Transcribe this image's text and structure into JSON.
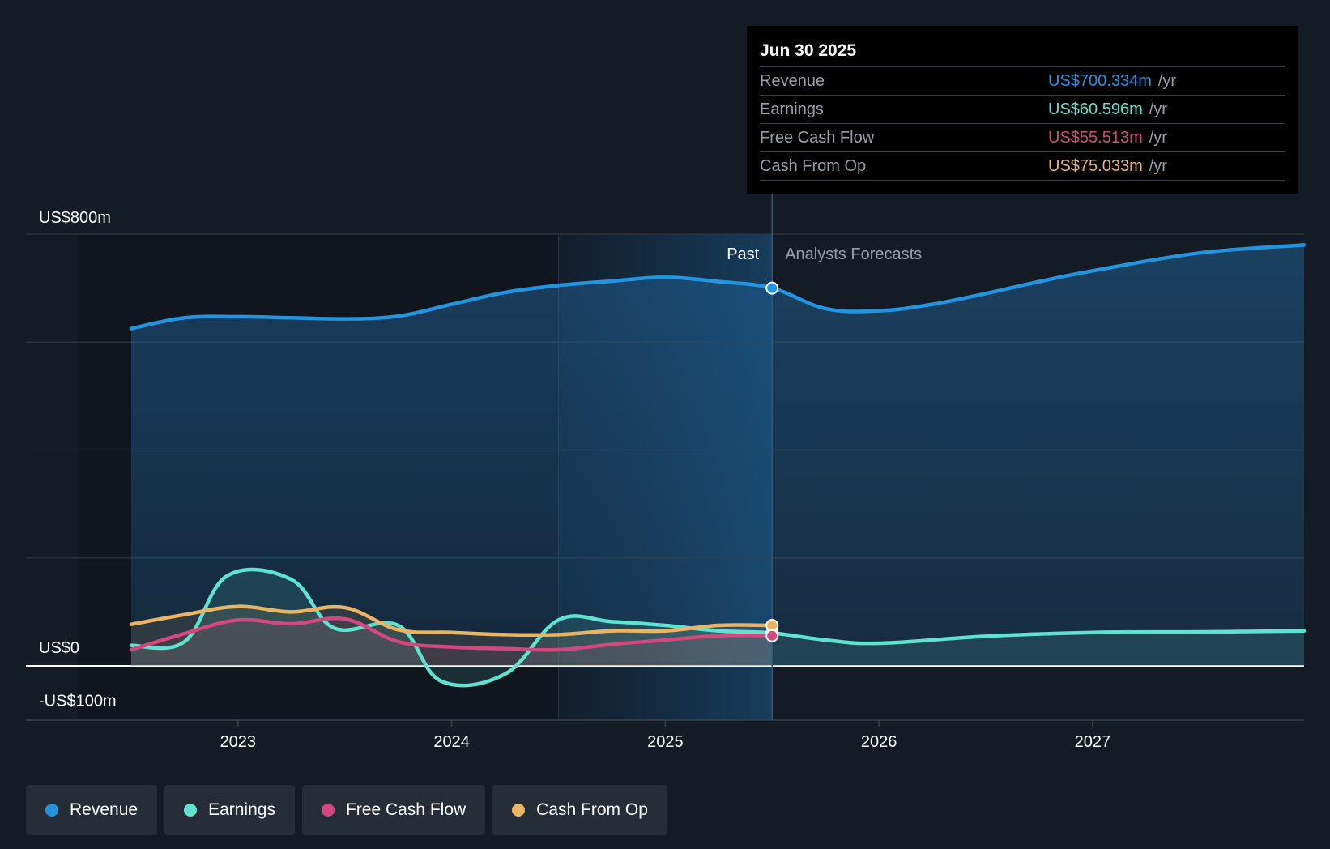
{
  "tooltip": {
    "date": "Jun 30 2025",
    "rows": [
      {
        "name": "Revenue",
        "value": "US$700.334m",
        "unit": "/yr",
        "color": "#2394e0"
      },
      {
        "name": "Earnings",
        "value": "US$60.596m",
        "unit": "/yr",
        "color": "#5fe3d0"
      },
      {
        "name": "Free Cash Flow",
        "value": "US$55.513m",
        "unit": "/yr",
        "color": "#d1497f"
      },
      {
        "name": "Cash From Op",
        "value": "US$75.033m",
        "unit": "/yr",
        "color": "#e9b463"
      }
    ]
  },
  "legend": [
    {
      "label": "Revenue",
      "color": "#2394e0"
    },
    {
      "label": "Earnings",
      "color": "#5fe3d0"
    },
    {
      "label": "Free Cash Flow",
      "color": "#d1497f"
    },
    {
      "label": "Cash From Op",
      "color": "#e9b463"
    }
  ],
  "chart_data": {
    "type": "line",
    "y_labels": [
      "US$800m",
      "US$0",
      "-US$100m"
    ],
    "ylim": [
      -100,
      800
    ],
    "xlim": [
      2022.25,
      2027.99
    ],
    "x_ticks": [
      {
        "label": "2023",
        "value": 2023
      },
      {
        "label": "2024",
        "value": 2024
      },
      {
        "label": "2025",
        "value": 2025
      },
      {
        "label": "2026",
        "value": 2026
      },
      {
        "label": "2027",
        "value": 2027
      }
    ],
    "past_label": "Past",
    "forecast_label": "Analysts Forecasts",
    "past_end": 2025.5,
    "highlight_start": 2024.5,
    "grid": true,
    "series": [
      {
        "name": "Revenue",
        "color": "#2394e0",
        "x": [
          2022.5,
          2022.75,
          2023.0,
          2023.25,
          2023.5,
          2023.75,
          2024.0,
          2024.25,
          2024.5,
          2024.75,
          2025.0,
          2025.25,
          2025.5,
          2025.75,
          2026.0,
          2026.25,
          2026.5,
          2026.75,
          2027.0,
          2027.5,
          2027.99
        ],
        "y": [
          625,
          645,
          647,
          645,
          643,
          648,
          670,
          692,
          705,
          713,
          720,
          712,
          700,
          662,
          658,
          670,
          690,
          712,
          732,
          765,
          780
        ]
      },
      {
        "name": "Earnings",
        "color": "#5fe3d0",
        "x": [
          2022.5,
          2022.75,
          2022.95,
          2023.25,
          2023.45,
          2023.75,
          2023.95,
          2024.25,
          2024.5,
          2024.75,
          2025.0,
          2025.25,
          2025.5,
          2025.75,
          2026.0,
          2026.5,
          2027.0,
          2027.5,
          2027.99
        ],
        "y": [
          38,
          45,
          167,
          160,
          70,
          75,
          -28,
          -15,
          85,
          82,
          75,
          65,
          61,
          48,
          42,
          55,
          62,
          63,
          65
        ]
      },
      {
        "name": "Free Cash Flow",
        "color": "#d1497f",
        "x": [
          2022.5,
          2022.75,
          2023.0,
          2023.25,
          2023.5,
          2023.75,
          2024.0,
          2024.25,
          2024.5,
          2024.75,
          2025.0,
          2025.25,
          2025.5
        ],
        "y": [
          30,
          60,
          85,
          78,
          87,
          45,
          35,
          32,
          30,
          40,
          48,
          56,
          56
        ]
      },
      {
        "name": "Cash From Op",
        "color": "#e9b463",
        "x": [
          2022.5,
          2022.75,
          2023.0,
          2023.25,
          2023.5,
          2023.75,
          2024.0,
          2024.25,
          2024.5,
          2024.75,
          2025.0,
          2025.25,
          2025.5
        ],
        "y": [
          77,
          95,
          110,
          100,
          108,
          67,
          62,
          58,
          58,
          65,
          65,
          75,
          75
        ]
      }
    ]
  }
}
